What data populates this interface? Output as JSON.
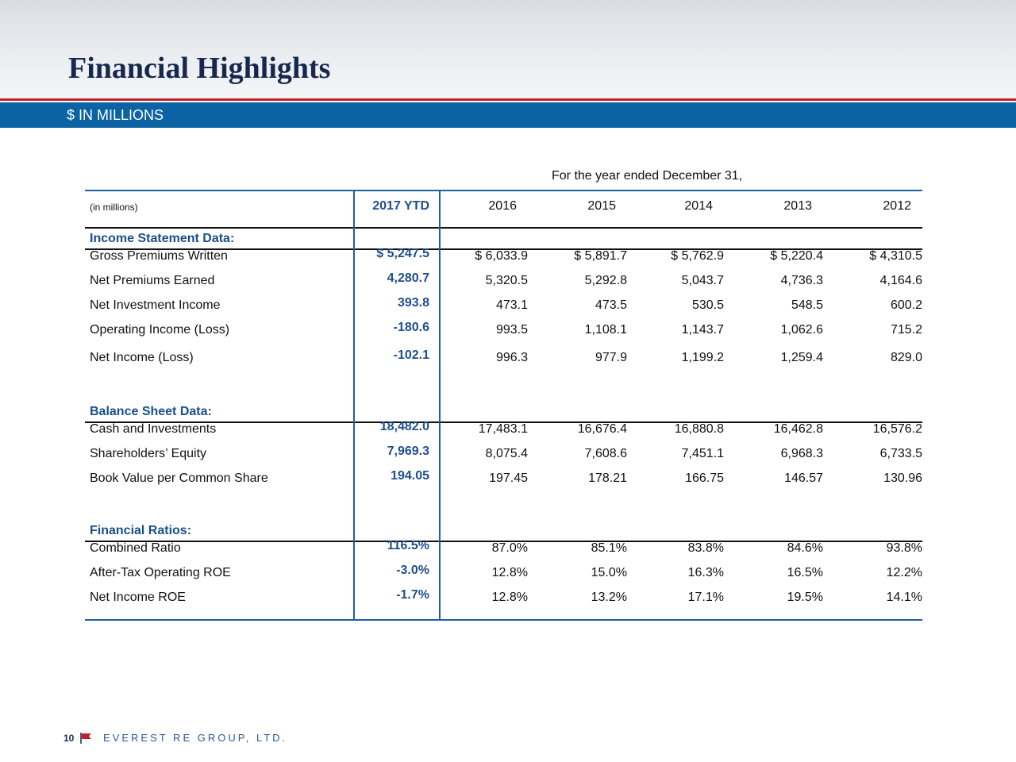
{
  "header": {
    "title": "Financial Highlights",
    "subtitle": "$ IN MILLIONS"
  },
  "table": {
    "caption": "For the year ended December 31,",
    "columns": [
      "(in millions)",
      "2017 YTD",
      "2016",
      "2015",
      "2014",
      "2013",
      "2012"
    ],
    "sections": [
      {
        "title": "Income Statement Data:",
        "rows": [
          [
            "Gross Premiums Written",
            "$ 5,247.5",
            "$ 6,033.9",
            "$ 5,891.7",
            "$ 5,762.9",
            "$ 5,220.4",
            "$ 4,310.5"
          ],
          [
            "Net Premiums Earned",
            "4,280.7",
            "5,320.5",
            "5,292.8",
            "5,043.7",
            "4,736.3",
            "4,164.6"
          ],
          [
            "Net Investment Income",
            "393.8",
            "473.1",
            "473.5",
            "530.5",
            "548.5",
            "600.2"
          ],
          [
            "Operating Income (Loss)",
            "-180.6",
            "993.5",
            "1,108.1",
            "1,143.7",
            "1,062.6",
            "715.2"
          ],
          [
            "Net Income (Loss)",
            "-102.1",
            "996.3",
            "977.9",
            "1,199.2",
            "1,259.4",
            "829.0"
          ]
        ]
      },
      {
        "title": "Balance Sheet Data:",
        "rows": [
          [
            "Cash and Investments",
            "18,482.0",
            "17,483.1",
            "16,676.4",
            "16,880.8",
            "16,462.8",
            "16,576.2"
          ],
          [
            "Shareholders’ Equity",
            "7,969.3",
            "8,075.4",
            "7,608.6",
            "7,451.1",
            "6,968.3",
            "6,733.5"
          ],
          [
            "Book Value per Common Share",
            "194.05",
            "197.45",
            "178.21",
            "166.75",
            "146.57",
            "130.96"
          ]
        ]
      },
      {
        "title": "Financial Ratios:",
        "rows": [
          [
            "Combined Ratio",
            "116.5%",
            "87.0%",
            "85.1%",
            "83.8%",
            "84.6%",
            "93.8%"
          ],
          [
            "After-Tax Operating ROE",
            "-3.0%",
            "12.8%",
            "15.0%",
            "16.3%",
            "16.5%",
            "12.2%"
          ],
          [
            "Net Income ROE",
            "-1.7%",
            "12.8%",
            "13.2%",
            "17.1%",
            "19.5%",
            "14.1%"
          ]
        ]
      }
    ]
  },
  "footer": {
    "page": "10",
    "company": "EVEREST RE GROUP, LTD."
  }
}
